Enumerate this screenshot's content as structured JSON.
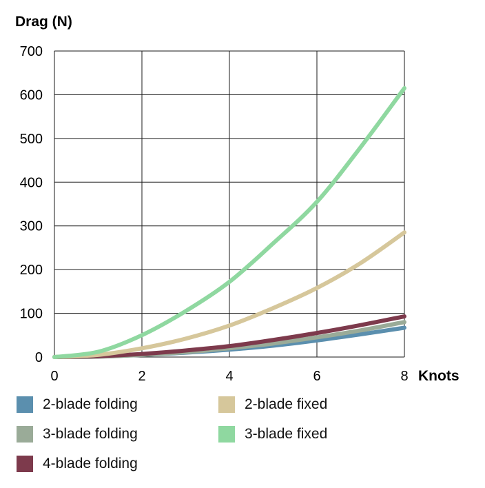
{
  "chart_data": {
    "type": "line",
    "ylabel": "Drag (N)",
    "xlabel": "Knots",
    "xlim": [
      0,
      8
    ],
    "ylim": [
      0,
      700
    ],
    "xticks": [
      "0",
      "2",
      "4",
      "6",
      "8"
    ],
    "yticks": [
      "0",
      "100",
      "200",
      "300",
      "400",
      "500",
      "600",
      "700"
    ],
    "grid": true,
    "legend_position": "bottom",
    "x": [
      0,
      1,
      2,
      3,
      4,
      5,
      6,
      7,
      8
    ],
    "series": [
      {
        "name": "2-blade folding",
        "color": "#5b8fae",
        "values": [
          0,
          1,
          5,
          10,
          17,
          26,
          38,
          52,
          67
        ]
      },
      {
        "name": "3-blade folding",
        "color": "#9aab98",
        "values": [
          0,
          1,
          5,
          11,
          20,
          31,
          45,
          61,
          80
        ]
      },
      {
        "name": "4-blade folding",
        "color": "#7d3a4c",
        "values": [
          0,
          2,
          7,
          15,
          25,
          39,
          55,
          73,
          93
        ]
      },
      {
        "name": "2-blade fixed",
        "color": "#d6c79b",
        "values": [
          0,
          5,
          20,
          42,
          72,
          112,
          158,
          215,
          285
        ]
      },
      {
        "name": "3-blade fixed",
        "color": "#8fd8a0",
        "values": [
          0,
          12,
          50,
          105,
          172,
          260,
          355,
          480,
          615
        ]
      }
    ]
  }
}
